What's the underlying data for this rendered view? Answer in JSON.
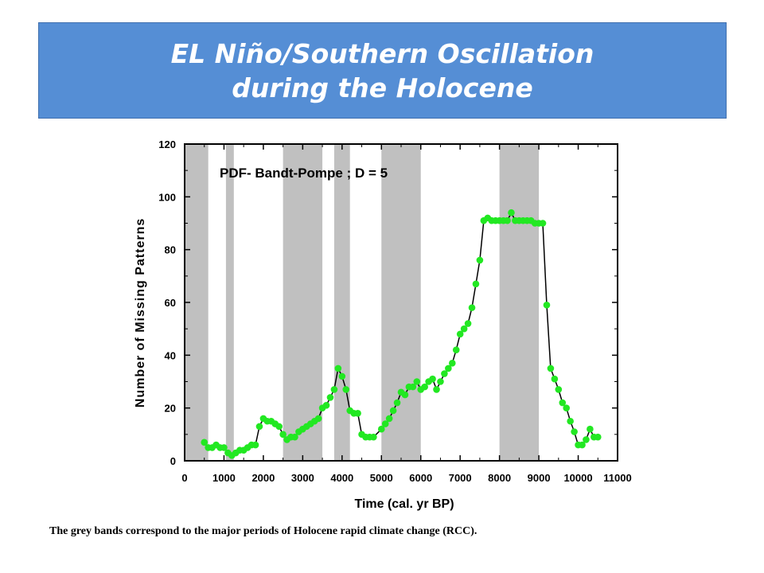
{
  "title": {
    "line1": "EL Niño/Southern Oscillation",
    "line2": "during the Holocene"
  },
  "caption": "The grey bands correspond to the major periods of Holocene rapid climate change (RCC).",
  "colors": {
    "title_bg": "#558ed5",
    "band": "#c0c0c0",
    "marker": "#22e822",
    "line": "#000000"
  },
  "chart_data": {
    "type": "line",
    "annotation": "PDF- Bandt-Pompe ; D = 5",
    "xlabel": "Time (cal. yr BP)",
    "ylabel": "Number of Missing Patterns",
    "xlim": [
      0,
      11000
    ],
    "ylim": [
      0,
      120
    ],
    "xticks": [
      0,
      1000,
      2000,
      3000,
      4000,
      5000,
      6000,
      7000,
      8000,
      9000,
      10000,
      11000
    ],
    "yticks": [
      0,
      20,
      40,
      60,
      80,
      100,
      120
    ],
    "grid": false,
    "bands": [
      [
        0,
        600
      ],
      [
        1050,
        1250
      ],
      [
        2500,
        3500
      ],
      [
        3800,
        4200
      ],
      [
        5000,
        6000
      ],
      [
        8000,
        9000
      ]
    ],
    "series": [
      {
        "x": [
          500,
          600,
          700,
          800,
          900,
          1000,
          1100,
          1200,
          1300,
          1400,
          1500,
          1600,
          1700,
          1800,
          1900,
          2000,
          2100,
          2200,
          2300,
          2400,
          2500,
          2600,
          2700,
          2800,
          2900,
          3000,
          3100,
          3200,
          3300,
          3400,
          3500,
          3600,
          3700,
          3800,
          3900,
          4000,
          4100,
          4200,
          4300,
          4400,
          4500,
          4600,
          4700,
          4800,
          5000,
          5100,
          5200,
          5300,
          5400,
          5500,
          5600,
          5700,
          5800,
          5900,
          6000,
          6100,
          6200,
          6300,
          6400,
          6500,
          6600,
          6700,
          6800,
          6900,
          7000,
          7100,
          7200,
          7300,
          7400,
          7500,
          7600,
          7700,
          7800,
          7900,
          8000,
          8100,
          8200,
          8300,
          8400,
          8500,
          8600,
          8700,
          8800,
          8900,
          9000,
          9100,
          9200,
          9300,
          9400,
          9500,
          9600,
          9700,
          9800,
          9900,
          10000,
          10100,
          10200,
          10300,
          10400,
          10500
        ],
        "y": [
          7,
          5,
          5,
          6,
          5,
          5,
          3,
          2,
          3,
          4,
          4,
          5,
          6,
          6,
          13,
          16,
          15,
          15,
          14,
          13,
          10,
          8,
          9,
          9,
          11,
          12,
          13,
          14,
          15,
          16,
          20,
          21,
          24,
          27,
          35,
          32,
          27,
          19,
          18,
          18,
          10,
          9,
          9,
          9,
          12,
          14,
          16,
          19,
          22,
          26,
          25,
          28,
          28,
          30,
          27,
          28,
          30,
          31,
          27,
          30,
          33,
          35,
          37,
          42,
          48,
          50,
          52,
          58,
          67,
          76,
          91,
          92,
          91,
          91,
          91,
          91,
          91,
          94,
          91,
          91,
          91,
          91,
          91,
          90,
          90,
          90,
          59,
          35,
          31,
          27,
          22,
          20,
          15,
          11,
          6,
          6,
          8,
          12,
          9,
          9
        ]
      }
    ]
  }
}
